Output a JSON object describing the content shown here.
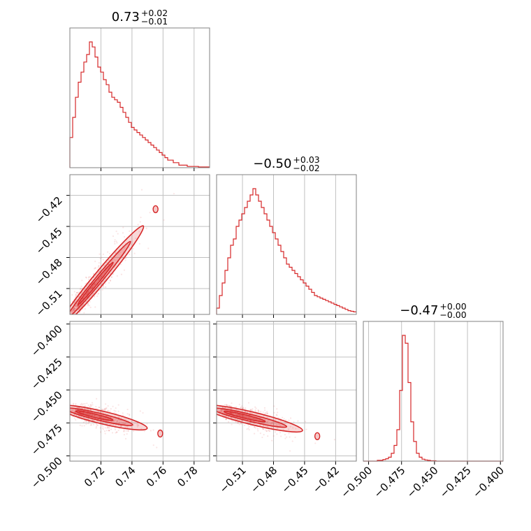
{
  "chart_data": {
    "type": "corner",
    "color": "#d62728",
    "parameters": [
      {
        "title_value": "0.73",
        "title_plus": "+0.02",
        "title_minus": "−0.01",
        "range": [
          0.7,
          0.79
        ],
        "ticks": [
          0.72,
          0.74,
          0.76,
          0.78
        ],
        "tick_labels": [
          "0.72",
          "0.74",
          "0.76",
          "0.78"
        ]
      },
      {
        "title_value": "−0.50",
        "title_plus": "+0.03",
        "title_minus": "−0.02",
        "range": [
          -0.535,
          -0.4
        ],
        "ticks": [
          -0.51,
          -0.48,
          -0.45,
          -0.42
        ],
        "tick_labels": [
          "−0.51",
          "−0.48",
          "−0.45",
          "−0.42"
        ]
      },
      {
        "title_value": "−0.47",
        "title_plus": "+0.00",
        "title_minus": "−0.00",
        "range": [
          -0.504,
          -0.398
        ],
        "ticks": [
          -0.5,
          -0.475,
          -0.45,
          -0.425,
          -0.4
        ],
        "tick_labels": [
          "−0.500",
          "−0.475",
          "−0.450",
          "−0.425",
          "−0.400"
        ]
      }
    ],
    "histograms": [
      {
        "param": 0,
        "counts": [
          12,
          20,
          28,
          34,
          38,
          42,
          45,
          50,
          48,
          44,
          40,
          38,
          35,
          33,
          30,
          28,
          27,
          26,
          24,
          22,
          20,
          18,
          16,
          15,
          14,
          13,
          12,
          11,
          10,
          9,
          8,
          7,
          6,
          5,
          4,
          3,
          3,
          2,
          2,
          1,
          1,
          1,
          0.5,
          0.5,
          0.5,
          0.5,
          0.3,
          0.3,
          0.3,
          0.3
        ]
      },
      {
        "param": 1,
        "counts": [
          1,
          3,
          5,
          7,
          9,
          11,
          12,
          14,
          15,
          16,
          17,
          18,
          19,
          20,
          19,
          18,
          17,
          16,
          15,
          14,
          13,
          12,
          11,
          10,
          9,
          8,
          7.5,
          7,
          6.5,
          6,
          5.5,
          5,
          4.5,
          4,
          3.5,
          3,
          2.8,
          2.6,
          2.4,
          2.2,
          2,
          1.8,
          1.6,
          1.4,
          1.2,
          1,
          0.8,
          0.6,
          0.5,
          0.4
        ]
      },
      {
        "param": 2,
        "counts": [
          0,
          0,
          0,
          0,
          0,
          0.2,
          0.2,
          0.4,
          0.6,
          1,
          2,
          4,
          8,
          18,
          32,
          30,
          20,
          10,
          5,
          2,
          1,
          0.5,
          0.3,
          0.2,
          0.1,
          0.1,
          0,
          0,
          0,
          0,
          0,
          0,
          0,
          0,
          0,
          0,
          0,
          0,
          0,
          0,
          0,
          0,
          0,
          0,
          0,
          0,
          0,
          0,
          0,
          0
        ]
      }
    ],
    "contours": [
      {
        "x_param": 0,
        "y_param": 1
      },
      {
        "x_param": 0,
        "y_param": 2
      },
      {
        "x_param": 1,
        "y_param": 2
      }
    ],
    "grid": true
  }
}
